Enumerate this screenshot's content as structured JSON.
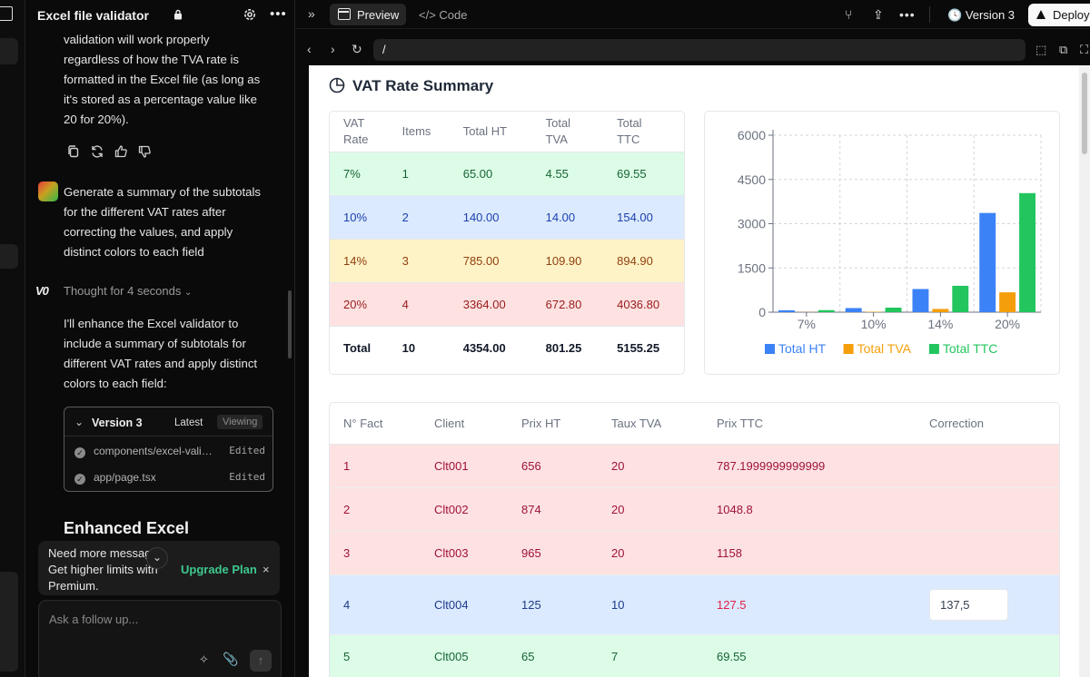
{
  "chat": {
    "title": "Excel file validator",
    "intro_lines": [
      "validation will work properly",
      "regardless of how the TVA rate is",
      "formatted in the Excel file (as long as",
      "it's stored as a percentage value like",
      "20 for 20%)."
    ],
    "user_lines": [
      "Generate a summary of the subtotals",
      "for the different VAT rates after",
      "correcting the values, and apply",
      "distinct colors to each field"
    ],
    "v0_logo": "V0",
    "thought": "Thought for 4 seconds",
    "reply_lines": [
      "I'll enhance the Excel validator to",
      "include a summary of subtotals for",
      "different VAT rates and apply distinct",
      "colors to each field:"
    ],
    "version_card": {
      "title": "Version 3",
      "latest": "Latest",
      "viewing": "Viewing",
      "files": [
        {
          "name": "components/excel-vali…",
          "status": "Edited"
        },
        {
          "name": "app/page.tsx",
          "status": "Edited"
        }
      ]
    },
    "heading": "Enhanced Excel",
    "upgrade": {
      "line1": "Need more messag",
      "line2": "Get higher limits with",
      "line3": "Premium.",
      "link": "Upgrade Plan"
    },
    "input_placeholder": "Ask a follow up..."
  },
  "toolbar": {
    "preview_tab": "Preview",
    "code_tab": "Code",
    "version": "Version 3",
    "deploy": "Deploy",
    "url": "/"
  },
  "summary": {
    "title": "VAT Rate Summary",
    "headers": [
      [
        "VAT",
        "Rate"
      ],
      [
        "Items",
        ""
      ],
      [
        "Total HT",
        ""
      ],
      [
        "Total",
        "TVA"
      ],
      [
        "Total",
        "TTC"
      ]
    ],
    "rows": [
      {
        "rate": "7%",
        "items": "1",
        "ht": "65.00",
        "tva": "4.55",
        "ttc": "69.55",
        "bg": "#dcfce7",
        "fg": "#166534"
      },
      {
        "rate": "10%",
        "items": "2",
        "ht": "140.00",
        "tva": "14.00",
        "ttc": "154.00",
        "bg": "#dbeafe",
        "fg": "#1e40af"
      },
      {
        "rate": "14%",
        "items": "3",
        "ht": "785.00",
        "tva": "109.90",
        "ttc": "894.90",
        "bg": "#fef3c7",
        "fg": "#92400e"
      },
      {
        "rate": "20%",
        "items": "4",
        "ht": "3364.00",
        "tva": "672.80",
        "ttc": "4036.80",
        "bg": "#fee2e2",
        "fg": "#991b1b"
      }
    ],
    "total": {
      "label": "Total",
      "items": "10",
      "ht": "4354.00",
      "tva": "801.25",
      "ttc": "5155.25"
    }
  },
  "chart_data": {
    "type": "bar",
    "categories": [
      "7%",
      "10%",
      "14%",
      "20%"
    ],
    "series": [
      {
        "name": "Total HT",
        "values": [
          65,
          140,
          785,
          3364
        ],
        "color": "#3b82f6"
      },
      {
        "name": "Total TVA",
        "values": [
          4.55,
          14,
          109.9,
          672.8
        ],
        "color": "#f59e0b"
      },
      {
        "name": "Total TTC",
        "values": [
          69.55,
          154,
          894.9,
          4036.8
        ],
        "color": "#22c55e"
      }
    ],
    "bar_order_note": "",
    "yticks": [
      0,
      1500,
      3000,
      4500,
      6000
    ],
    "ylim": [
      0,
      6000
    ],
    "grid": true,
    "legend": "bottom"
  },
  "invoices": {
    "headers": [
      "N° Fact",
      "Client",
      "Prix HT",
      "Taux TVA",
      "Prix TTC",
      "Correction"
    ],
    "rows": [
      {
        "n": "1",
        "client": "Clt001",
        "ht": "656",
        "tva": "20",
        "ttc": "787.1999999999999",
        "corr": "",
        "bg": "#fee2e2",
        "fg": "#9f1239",
        "ttcfg": "#9f1239"
      },
      {
        "n": "2",
        "client": "Clt002",
        "ht": "874",
        "tva": "20",
        "ttc": "1048.8",
        "corr": "",
        "bg": "#fee2e2",
        "fg": "#9f1239",
        "ttcfg": "#9f1239"
      },
      {
        "n": "3",
        "client": "Clt003",
        "ht": "965",
        "tva": "20",
        "ttc": "1158",
        "corr": "",
        "bg": "#fee2e2",
        "fg": "#9f1239",
        "ttcfg": "#9f1239"
      },
      {
        "n": "4",
        "client": "Clt004",
        "ht": "125",
        "tva": "10",
        "ttc": "127.5",
        "corr": "137,5",
        "bg": "#dbeafe",
        "fg": "#1e3a8a",
        "ttcfg": "#e11d48"
      },
      {
        "n": "5",
        "client": "Clt005",
        "ht": "65",
        "tva": "7",
        "ttc": "69.55",
        "corr": "",
        "bg": "#dcfce7",
        "fg": "#166534",
        "ttcfg": "#166534"
      }
    ]
  }
}
